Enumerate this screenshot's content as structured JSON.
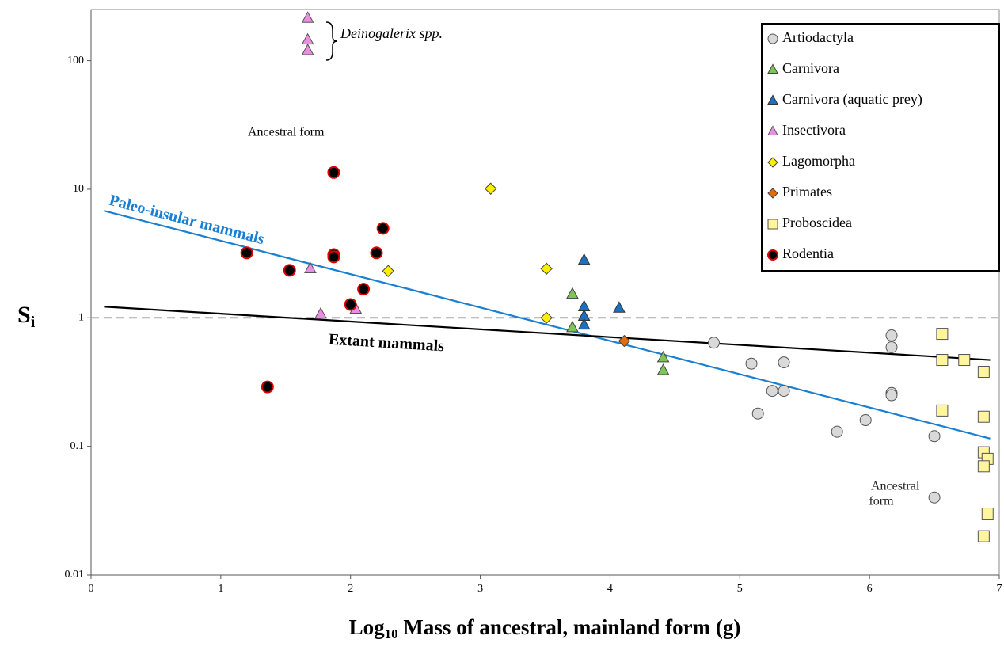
{
  "chart_data": {
    "type": "scatter",
    "y_label": {
      "main": "S",
      "sub": "i"
    },
    "x_label": {
      "pre": "Log",
      "sub": "10",
      "post": " Mass of ancestral, mainland form (g)"
    },
    "xlim": [
      0,
      7
    ],
    "xticks": [
      0,
      1,
      2,
      3,
      4,
      5,
      6,
      7
    ],
    "ylim": [
      0.01,
      250
    ],
    "yticks": [
      0.01,
      0.1,
      1,
      10,
      100
    ],
    "log_y": true,
    "legend": "upper right",
    "reference_line": 1,
    "series": [
      {
        "name": "Artiodactyla",
        "marker": "circle",
        "color": "#d9d9d9",
        "edgecolor": "#555555",
        "x": [
          4.8,
          5.09,
          5.34,
          5.25,
          5.34,
          5.14,
          5.75,
          5.97,
          6.17,
          6.17,
          6.17,
          6.17,
          6.5,
          6.5
        ],
        "values": [
          0.64,
          0.44,
          0.45,
          0.27,
          0.27,
          0.18,
          0.13,
          0.16,
          0.73,
          0.59,
          0.26,
          0.25,
          0.12,
          0.04
        ]
      },
      {
        "name": "Carnivora",
        "marker": "triangle",
        "color": "#7dc45a",
        "edgecolor": "#444444",
        "x": [
          3.71,
          3.71,
          4.41,
          4.41
        ],
        "values": [
          1.53,
          0.84,
          0.49,
          0.39
        ]
      },
      {
        "name": "Carnivora (aquatic prey)",
        "marker": "triangle",
        "color": "#1f6fbf",
        "edgecolor": "#333333",
        "x": [
          3.8,
          3.8,
          3.8,
          3.8,
          4.07
        ],
        "values": [
          2.81,
          1.22,
          1.03,
          0.88,
          1.19
        ]
      },
      {
        "name": "Insectivora",
        "marker": "triangle",
        "color": "#e98ee0",
        "edgecolor": "#555555",
        "x": [
          1.67,
          1.67,
          1.67,
          1.69,
          1.77,
          2.04
        ],
        "values": [
          214,
          145,
          120,
          2.41,
          1.07,
          1.17
        ]
      },
      {
        "name": "Lagomorpha",
        "marker": "diamond",
        "color": "#ffee00",
        "edgecolor": "#444444",
        "x": [
          3.08,
          2.29,
          3.51,
          3.51
        ],
        "values": [
          10.1,
          2.31,
          2.41,
          1.0
        ]
      },
      {
        "name": "Primates",
        "marker": "diamond",
        "color": "#e26b0a",
        "edgecolor": "#444444",
        "x": [
          4.11
        ],
        "values": [
          0.66
        ]
      },
      {
        "name": "Proboscidea",
        "marker": "square",
        "color": "#fff59d",
        "edgecolor": "#555555",
        "x": [
          6.56,
          6.56,
          6.73,
          6.88,
          6.56,
          6.88,
          6.88,
          6.91,
          6.88,
          6.91,
          6.88
        ],
        "values": [
          0.75,
          0.47,
          0.47,
          0.38,
          0.19,
          0.17,
          0.09,
          0.08,
          0.07,
          0.03,
          0.02
        ]
      },
      {
        "name": "Rodentia",
        "marker": "circle",
        "color": "#000000",
        "edgecolor": "#e00000",
        "x": [
          1.87,
          1.2,
          1.53,
          1.87,
          1.87,
          2.2,
          2.25,
          2.1,
          2.0,
          1.36
        ],
        "values": [
          13.5,
          3.2,
          2.34,
          3.1,
          2.98,
          3.2,
          4.96,
          1.67,
          1.27,
          0.29
        ]
      }
    ],
    "trend_lines": [
      {
        "name": "Paleo-insular mammals",
        "color": "#1a7fd0",
        "x": [
          0.1,
          6.93
        ],
        "values": [
          6.8,
          0.115
        ]
      },
      {
        "name": "Extant mammals",
        "color": "#000000",
        "x": [
          0.1,
          6.93
        ],
        "values": [
          1.22,
          0.47
        ]
      }
    ],
    "annotations": [
      "Deinogalerix spp.",
      "Ancestral form",
      "Ancestral",
      "form"
    ]
  }
}
